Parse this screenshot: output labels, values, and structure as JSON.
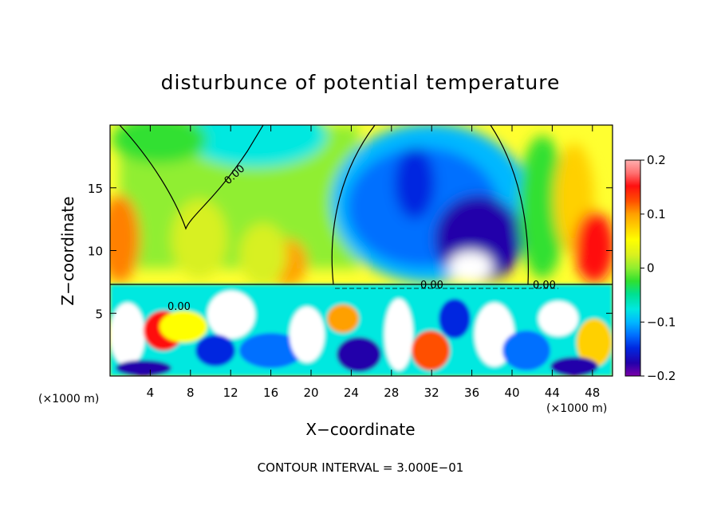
{
  "chart_data": {
    "type": "heatmap",
    "title": "disturbunce of potential temperature",
    "xlabel": "X−coordinate",
    "ylabel": "Z−coordinate",
    "x_unit": "(×1000 m)",
    "y_unit": "(×1000 m)",
    "xlim": [
      0,
      50
    ],
    "ylim": [
      0,
      20
    ],
    "x_ticks": [
      4,
      8,
      12,
      16,
      20,
      24,
      28,
      32,
      36,
      40,
      44,
      48
    ],
    "y_ticks": [
      5,
      10,
      15
    ],
    "colorbar": {
      "range": [
        -0.2,
        0.2
      ],
      "ticks": [
        0.2,
        0.1,
        0,
        -0.1,
        -0.2
      ],
      "tick_labels": [
        "0.2",
        "0.1",
        "0",
        "−0.1",
        "−0.2"
      ],
      "colors": [
        "#7a00a8",
        "#2200aa",
        "#0028e0",
        "#0070ff",
        "#00b8ff",
        "#00e8e0",
        "#00e090",
        "#30e030",
        "#90ee30",
        "#d8f020",
        "#ffff00",
        "#ffd000",
        "#ffa000",
        "#ff5000",
        "#ff1010",
        "#ff7070",
        "#ffb0b0"
      ]
    },
    "contour_interval_text": "CONTOUR INTERVAL = 3.000E−01",
    "contour_labels": [
      "0.00",
      "0.00",
      "0.00",
      "0.00"
    ],
    "colors": {
      "background": "#ffffff",
      "frame": "#000000"
    }
  }
}
